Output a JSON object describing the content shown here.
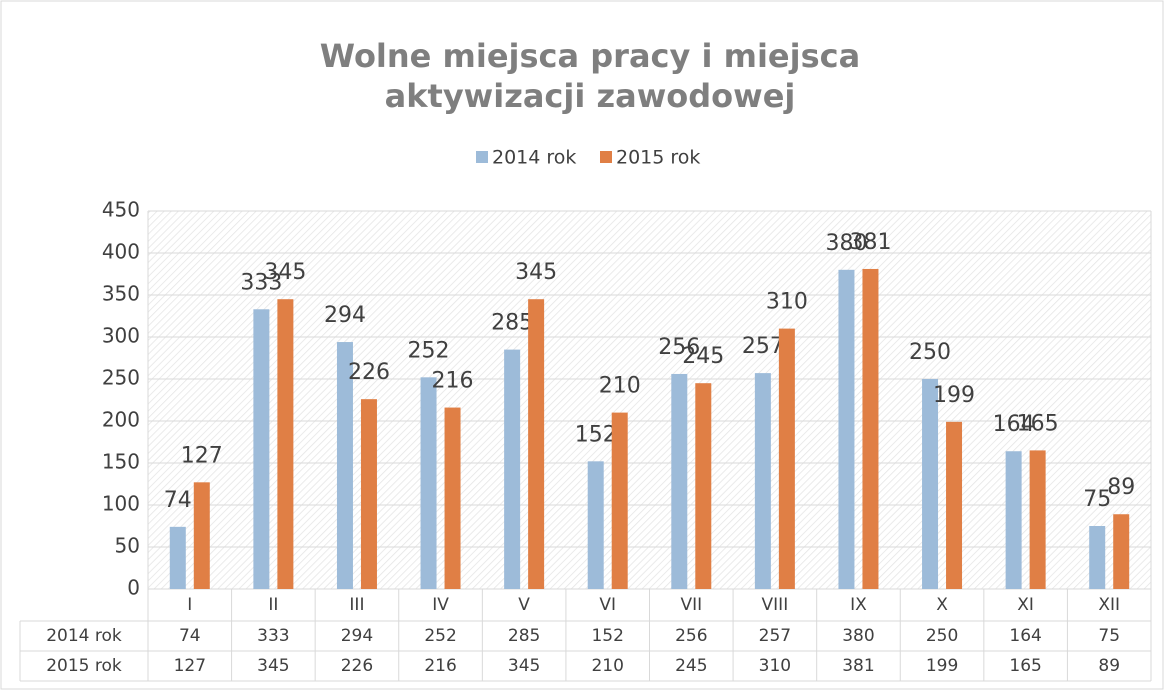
{
  "chart_data": {
    "type": "bar",
    "title": "Wolne miejsca pracy i miejsca aktywizacji zawodowej",
    "categories": [
      "I",
      "II",
      "III",
      "IV",
      "V",
      "VI",
      "VII",
      "VIII",
      "IX",
      "X",
      "XI",
      "XII"
    ],
    "series": [
      {
        "name": "2014 rok",
        "color": "#9dbbd9",
        "values": [
          74,
          333,
          294,
          252,
          285,
          152,
          256,
          257,
          380,
          250,
          164,
          75
        ]
      },
      {
        "name": "2015 rok",
        "color": "#e07f45",
        "values": [
          127,
          345,
          226,
          216,
          345,
          210,
          245,
          310,
          381,
          199,
          165,
          89
        ]
      }
    ],
    "ylim": [
      0,
      450
    ],
    "yticks": [
      0,
      50,
      100,
      150,
      200,
      250,
      300,
      350,
      400,
      450
    ],
    "grid": true,
    "legend": "top"
  }
}
